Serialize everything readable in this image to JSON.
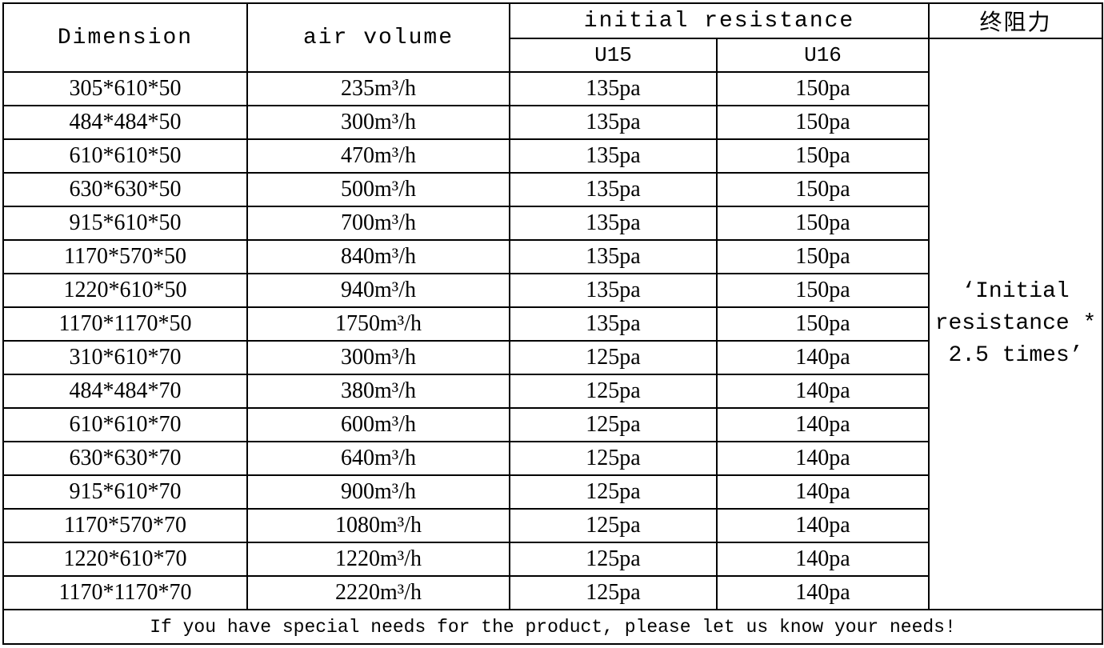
{
  "table": {
    "headers": {
      "dimension": "Dimension",
      "air_volume": "air volume",
      "initial_resistance": "initial resistance",
      "u15": "U15",
      "u16": "U16",
      "final_resistance": "终阻力"
    },
    "final_note": "‘Initial resistance * 2.5 times’",
    "rows": [
      [
        "305*610*50",
        "235m³/h",
        "135pa",
        "150pa"
      ],
      [
        "484*484*50",
        "300m³/h",
        "135pa",
        "150pa"
      ],
      [
        "610*610*50",
        "470m³/h",
        "135pa",
        "150pa"
      ],
      [
        "630*630*50",
        "500m³/h",
        "135pa",
        "150pa"
      ],
      [
        "915*610*50",
        "700m³/h",
        "135pa",
        "150pa"
      ],
      [
        "1170*570*50",
        "840m³/h",
        "135pa",
        "150pa"
      ],
      [
        "1220*610*50",
        "940m³/h",
        "135pa",
        "150pa"
      ],
      [
        "1170*1170*50",
        "1750m³/h",
        "135pa",
        "150pa"
      ],
      [
        "310*610*70",
        "300m³/h",
        "125pa",
        "140pa"
      ],
      [
        "484*484*70",
        "380m³/h",
        "125pa",
        "140pa"
      ],
      [
        "610*610*70",
        "600m³/h",
        "125pa",
        "140pa"
      ],
      [
        "630*630*70",
        "640m³/h",
        "125pa",
        "140pa"
      ],
      [
        "915*610*70",
        "900m³/h",
        "125pa",
        "140pa"
      ],
      [
        "1170*570*70",
        "1080m³/h",
        "125pa",
        "140pa"
      ],
      [
        "1220*610*70",
        "1220m³/h",
        "125pa",
        "140pa"
      ],
      [
        "1170*1170*70",
        "2220m³/h",
        "125pa",
        "140pa"
      ]
    ],
    "footer": "If you have special needs for the product, please let us know your needs!"
  }
}
